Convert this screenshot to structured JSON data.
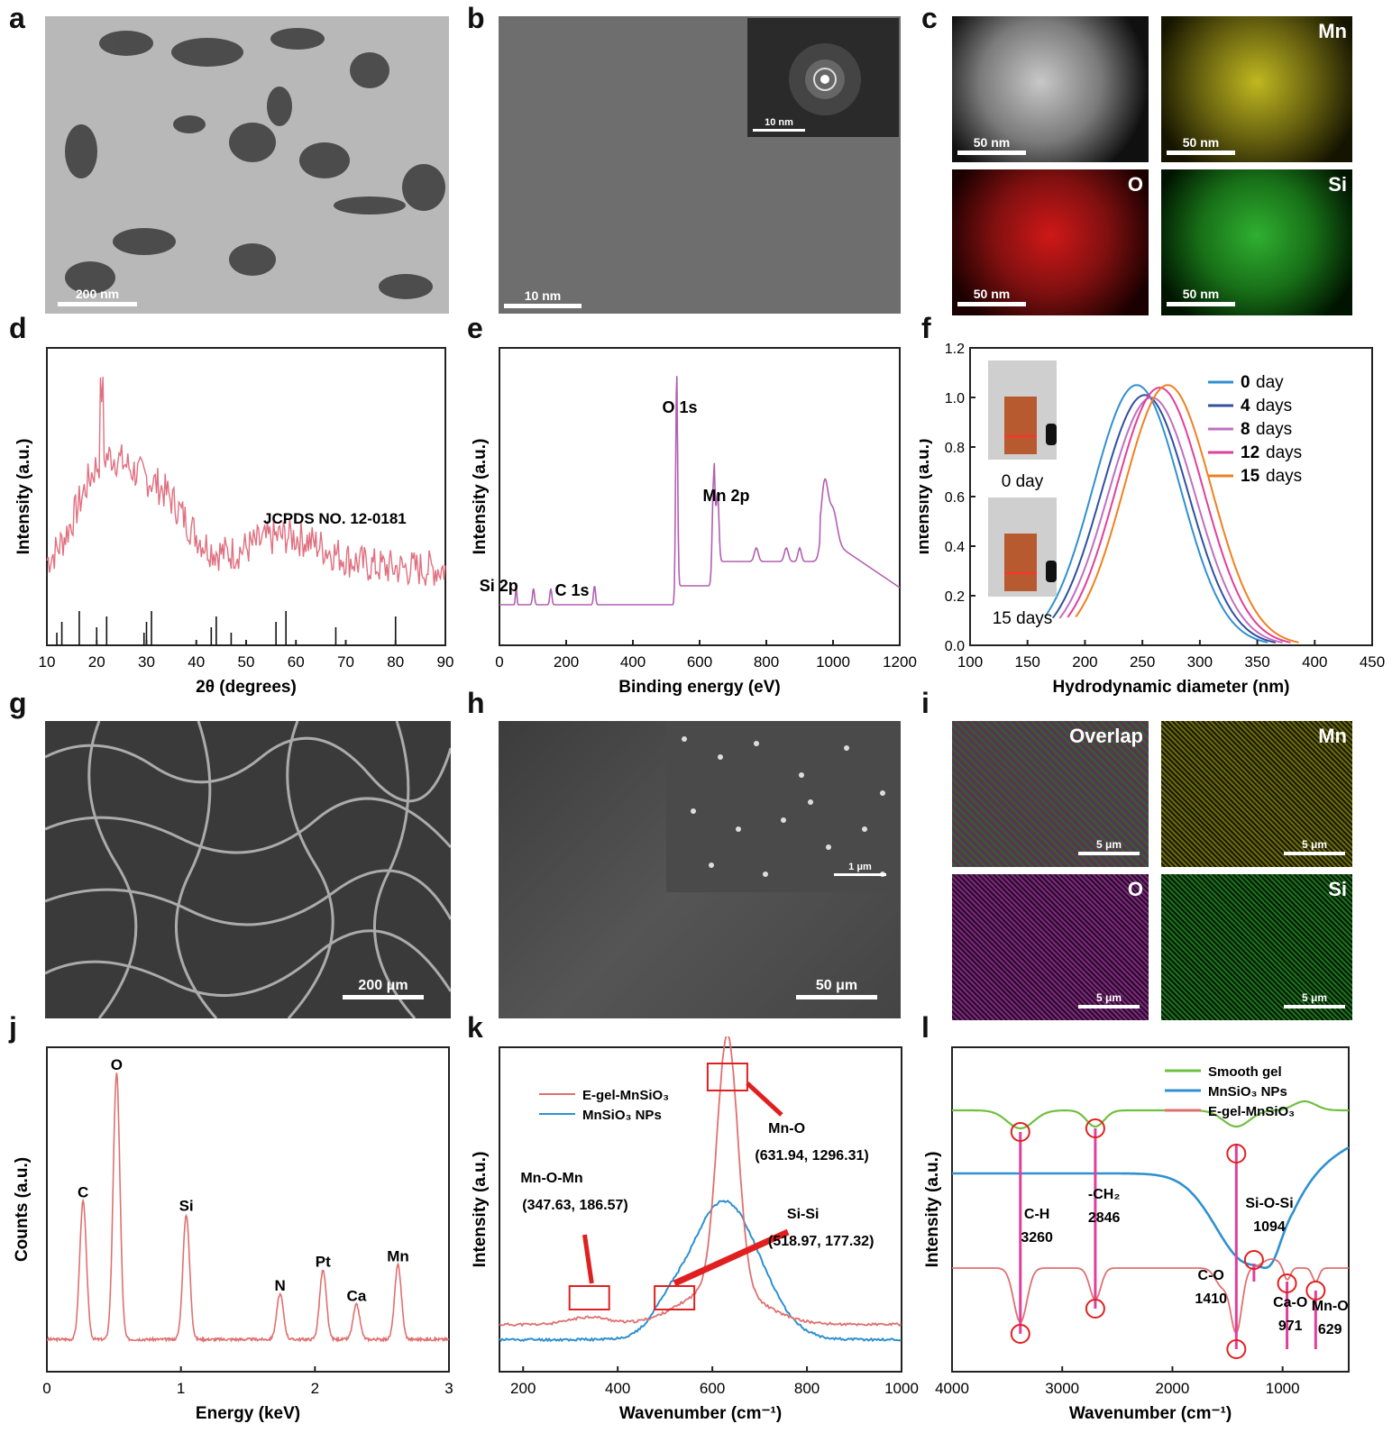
{
  "panel_labels": [
    "a",
    "b",
    "c",
    "d",
    "e",
    "f",
    "g",
    "h",
    "i",
    "j",
    "k",
    "l"
  ],
  "micrographs": {
    "a": {
      "scale": "200 nm"
    },
    "b": {
      "scale": "10 nm",
      "inset_scale": "10 nm"
    },
    "c": {
      "tiles": [
        {
          "element": "",
          "scale": "50 nm",
          "color": "#d8d8d8"
        },
        {
          "element": "Mn",
          "scale": "50 nm",
          "color": "#d8d020"
        },
        {
          "element": "O",
          "scale": "50 nm",
          "color": "#e02020"
        },
        {
          "element": "Si",
          "scale": "50 nm",
          "color": "#30b030"
        }
      ]
    },
    "g": {
      "scale": "200 μm"
    },
    "h": {
      "scale": "50 μm",
      "inset_scale": "1 μm"
    },
    "i": {
      "tiles": [
        {
          "element": "Overlap",
          "scale": "5 μm",
          "color": "#b08080"
        },
        {
          "element": "Mn",
          "scale": "5 μm",
          "color": "#d0d020"
        },
        {
          "element": "O",
          "scale": "5 μm",
          "color": "#b030b0"
        },
        {
          "element": "Si",
          "scale": "5 μm",
          "color": "#30a030"
        }
      ]
    }
  },
  "chart_data": [
    {
      "panel": "d",
      "type": "line",
      "xlabel": "2θ (degrees)",
      "ylabel": "Intensity (a.u.)",
      "xlim": [
        10,
        90
      ],
      "xticks": [
        10,
        20,
        30,
        40,
        50,
        60,
        70,
        80,
        90
      ],
      "annotation": "JCPDS NO. 12-0181",
      "color": "#e07080",
      "reference_peaks": [
        12,
        13,
        16.5,
        20,
        22,
        29.5,
        30,
        31,
        43,
        44,
        47,
        56,
        58,
        68,
        80
      ]
    },
    {
      "panel": "e",
      "type": "line",
      "xlabel": "Binding energy (eV)",
      "ylabel": "Intensity (a.u.)",
      "xlim": [
        0,
        1200
      ],
      "xticks": [
        0,
        200,
        400,
        600,
        800,
        1000,
        1200
      ],
      "color": "#b060b0",
      "annotations": [
        {
          "text": "O 1s",
          "x": 531
        },
        {
          "text": "Mn 2p",
          "x": 642
        },
        {
          "text": "Si 2p",
          "x": 102
        },
        {
          "text": "C 1s",
          "x": 285
        }
      ]
    },
    {
      "panel": "f",
      "type": "line",
      "xlabel": "Hydrodynamic diameter (nm)",
      "ylabel": "Intensity (a.u.)",
      "xlim": [
        100,
        450
      ],
      "ylim": [
        0,
        1.2
      ],
      "xticks": [
        100,
        150,
        200,
        250,
        300,
        350,
        400,
        450
      ],
      "yticks": [
        "0.0",
        "0.2",
        "0.4",
        "0.6",
        "0.8",
        "1.0",
        "1.2"
      ],
      "series": [
        {
          "name": "0 day",
          "num": "0",
          "unit": "day",
          "center": 245,
          "height": 1.05,
          "color": "#3090d0"
        },
        {
          "name": "4 days",
          "num": "4",
          "unit": "days",
          "center": 252,
          "height": 1.01,
          "color": "#3050a0"
        },
        {
          "name": "8 days",
          "num": "8",
          "unit": "days",
          "center": 258,
          "height": 1.0,
          "color": "#c070c0"
        },
        {
          "name": "12 days",
          "num": "12",
          "unit": "days",
          "center": 265,
          "height": 1.04,
          "color": "#e0409a"
        },
        {
          "name": "15 days",
          "num": "15",
          "unit": "days",
          "center": 272,
          "height": 1.05,
          "color": "#f08020"
        }
      ],
      "insets": [
        "0 day",
        "15 days"
      ]
    },
    {
      "panel": "j",
      "type": "line",
      "xlabel": "Energy (keV)",
      "ylabel": "Counts (a.u.)",
      "xlim": [
        0,
        3
      ],
      "xticks": [
        0,
        1,
        2,
        3
      ],
      "color": "#e07070",
      "peaks": [
        {
          "label": "C",
          "x": 0.27,
          "h": 0.52
        },
        {
          "label": "O",
          "x": 0.52,
          "h": 1.0
        },
        {
          "label": "Si",
          "x": 1.04,
          "h": 0.47
        },
        {
          "label": "N",
          "x": 1.74,
          "h": 0.17
        },
        {
          "label": "Pt",
          "x": 2.06,
          "h": 0.26
        },
        {
          "label": "Ca",
          "x": 2.31,
          "h": 0.13
        },
        {
          "label": "Mn",
          "x": 2.62,
          "h": 0.28
        }
      ]
    },
    {
      "panel": "k",
      "type": "line",
      "xlabel": "Wavenumber (cm⁻¹)",
      "ylabel": "Intensity (a.u.)",
      "xlim": [
        150,
        1000
      ],
      "xticks": [
        200,
        400,
        600,
        800,
        1000
      ],
      "series": [
        {
          "name": "E-gel-MnSiO₃",
          "color": "#e07070"
        },
        {
          "name": "MnSiO₃ NPs",
          "color": "#3090d0"
        }
      ],
      "annotations": [
        {
          "title": "Mn-O",
          "coord": "(631.94, 1296.31)"
        },
        {
          "title": "Mn-O-Mn",
          "coord": "(347.63, 186.57)"
        },
        {
          "title": "Si-Si",
          "coord": "(518.97, 177.32)"
        }
      ]
    },
    {
      "panel": "l",
      "type": "line",
      "xlabel": "Wavenumber (cm⁻¹)",
      "ylabel": "Intensity (a.u.)",
      "xlim": [
        4000,
        400
      ],
      "xticks": [
        4000,
        3000,
        2000,
        1000
      ],
      "series": [
        {
          "name": "Smooth gel",
          "color": "#70c040"
        },
        {
          "name": "MnSiO₃ NPs",
          "color": "#3090d0"
        },
        {
          "name": "E-gel-MnSiO₃",
          "color": "#e07070"
        }
      ],
      "bands": [
        {
          "label": "C-H",
          "value": "3260"
        },
        {
          "label": "-CH₂",
          "value": "2846"
        },
        {
          "label": "Si-O-Si",
          "value": "1094"
        },
        {
          "label": "C-O",
          "value": "1410"
        },
        {
          "label": "Ca-O",
          "value": "971"
        },
        {
          "label": "Mn-O",
          "value": "629"
        }
      ]
    }
  ]
}
